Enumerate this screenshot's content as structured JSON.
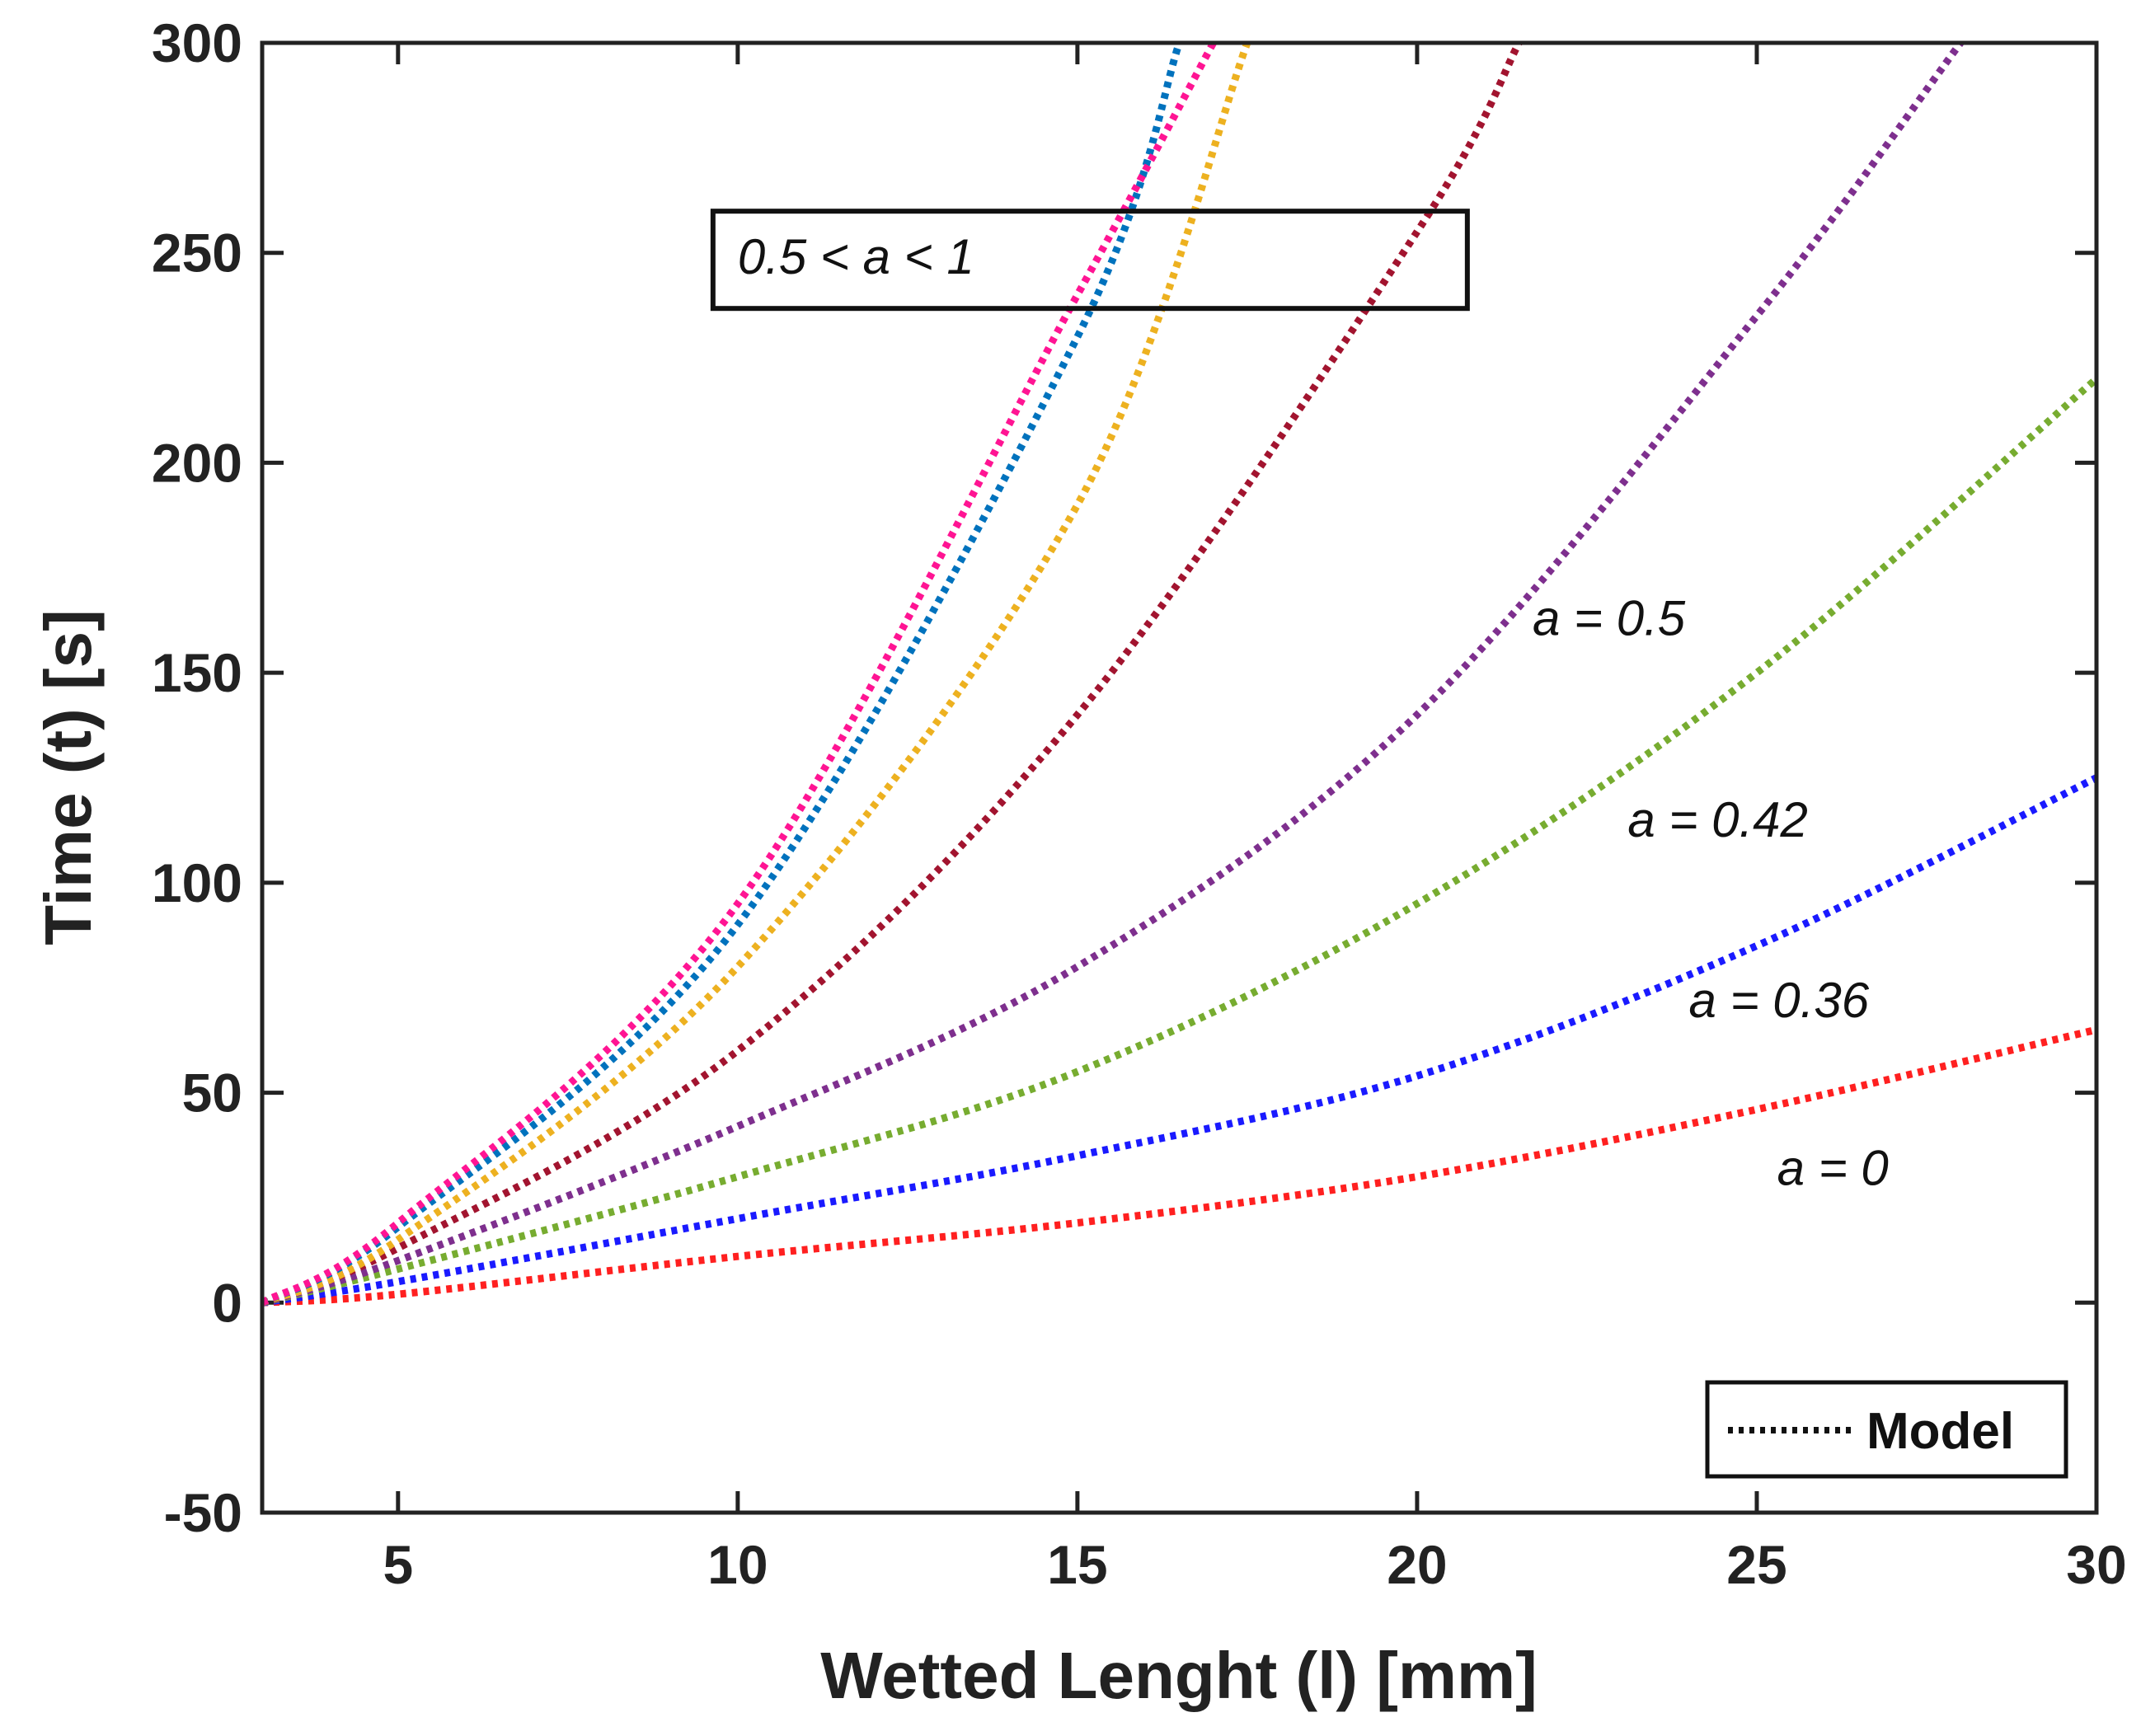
{
  "chart_data": {
    "type": "line",
    "title": "",
    "xlabel": "Wetted Lenght (l) [mm]",
    "ylabel": "Time (t) [s]",
    "xlim": [
      3,
      30
    ],
    "ylim": [
      -50,
      300
    ],
    "xticks": [
      5,
      10,
      15,
      20,
      25,
      30
    ],
    "yticks": [
      -50,
      0,
      50,
      100,
      150,
      200,
      250,
      300
    ],
    "grid": false,
    "legend": {
      "position": "bottom-right",
      "entries": [
        "Model"
      ]
    },
    "series": [
      {
        "name": "a = 0",
        "color": "#ff2020",
        "x": [
          3,
          5,
          10,
          15,
          20,
          25,
          30
        ],
        "y": [
          0,
          2,
          11,
          19,
          30,
          46,
          65
        ]
      },
      {
        "name": "a = 0.36",
        "color": "#1a1aff",
        "x": [
          3,
          5,
          10,
          15,
          20,
          25,
          30
        ],
        "y": [
          0,
          5,
          20,
          35,
          54,
          85,
          125
        ]
      },
      {
        "name": "a = 0.42",
        "color": "#77ac30",
        "x": [
          3,
          5,
          10,
          15,
          20,
          25,
          30
        ],
        "y": [
          0,
          8,
          30,
          55,
          95,
          150,
          220
        ]
      },
      {
        "name": "a = 0.5",
        "color": "#7e2f8e",
        "x": [
          3,
          5,
          10,
          15,
          20,
          25,
          28
        ],
        "y": [
          0,
          10,
          42,
          80,
          140,
          235,
          300
        ]
      },
      {
        "name": "0.5 < a < 1 (1)",
        "color": "#a2142f",
        "x": [
          3,
          5,
          10,
          15,
          20,
          21.5
        ],
        "y": [
          0,
          13,
          60,
          140,
          255,
          300
        ]
      },
      {
        "name": "0.5 < a < 1 (2)",
        "color": "#edb120",
        "x": [
          3,
          5,
          10,
          15,
          17.5
        ],
        "y": [
          0,
          15,
          80,
          190,
          300
        ]
      },
      {
        "name": "0.5 < a < 1 (3)",
        "color": "#0072bd",
        "x": [
          3,
          5,
          10,
          15,
          16.5
        ],
        "y": [
          0,
          18,
          90,
          230,
          300
        ]
      },
      {
        "name": "0.5 < a < 1 (4)",
        "color": "#ff1493",
        "x": [
          3,
          5,
          10,
          15,
          17
        ],
        "y": [
          0,
          19,
          95,
          240,
          300
        ]
      }
    ],
    "annotations": [
      {
        "text": "a = 0.5",
        "x": 21.7,
        "y": 159
      },
      {
        "text": "a = 0.42",
        "x": 23.1,
        "y": 111
      },
      {
        "text": "a = 0.36",
        "x": 24.0,
        "y": 68
      },
      {
        "text": "a = 0",
        "x": 25.3,
        "y": 28
      },
      {
        "text": "0.5 < a < 1",
        "x": 10.0,
        "y": 245,
        "boxed": true
      }
    ]
  }
}
